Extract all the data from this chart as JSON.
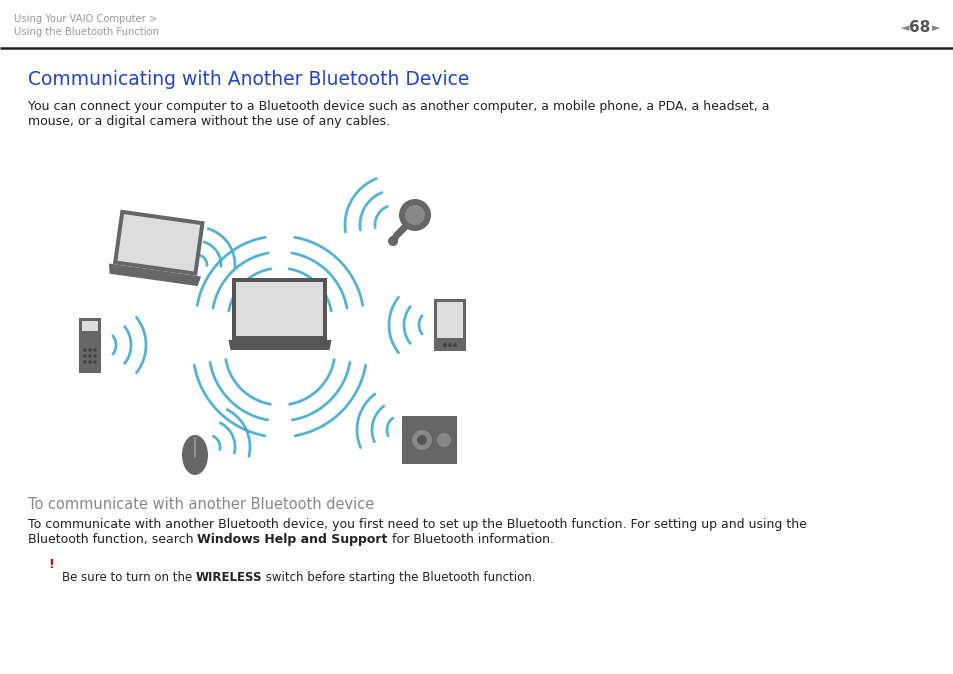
{
  "bg_color": "#ffffff",
  "header_breadcrumb_line1": "Using Your VAIO Computer >",
  "header_breadcrumb_line2": "Using the Bluetooth Function",
  "header_breadcrumb_color": "#999999",
  "header_page_num": "68",
  "header_page_color": "#555555",
  "header_arrow_color": "#888888",
  "separator_color": "#222222",
  "title": "Communicating with Another Bluetooth Device",
  "title_color": "#2244cc",
  "title_fontsize": 13.5,
  "body_line1": "You can connect your computer to a Bluetooth device such as another computer, a mobile phone, a PDA, a headset, a",
  "body_line2": "mouse, or a digital camera without the use of any cables.",
  "body_color": "#222222",
  "body_fontsize": 9.0,
  "subheading": "To communicate with another Bluetooth device",
  "subheading_color": "#888888",
  "subheading_fontsize": 10.5,
  "para2_line1": "To communicate with another Bluetooth device, you first need to set up the Bluetooth function. For setting up and using the",
  "para2_line2_pre": "Bluetooth function, search ",
  "para2_line2_bold": "Windows Help and Support",
  "para2_line2_post": " for Bluetooth information.",
  "para2_color": "#222222",
  "para2_fontsize": 9.0,
  "exclaim_color": "#cc0000",
  "note_pre": "Be sure to turn on the ",
  "note_bold": "WIRELESS",
  "note_post": " switch before starting the Bluetooth function.",
  "note_color": "#222222",
  "note_fontsize": 8.5,
  "device_color": "#666666",
  "device_color2": "#555555",
  "device_color3": "#888888",
  "screen_color": "#dddddd",
  "wave_color": "#44aacc",
  "wave_alpha": 0.9
}
